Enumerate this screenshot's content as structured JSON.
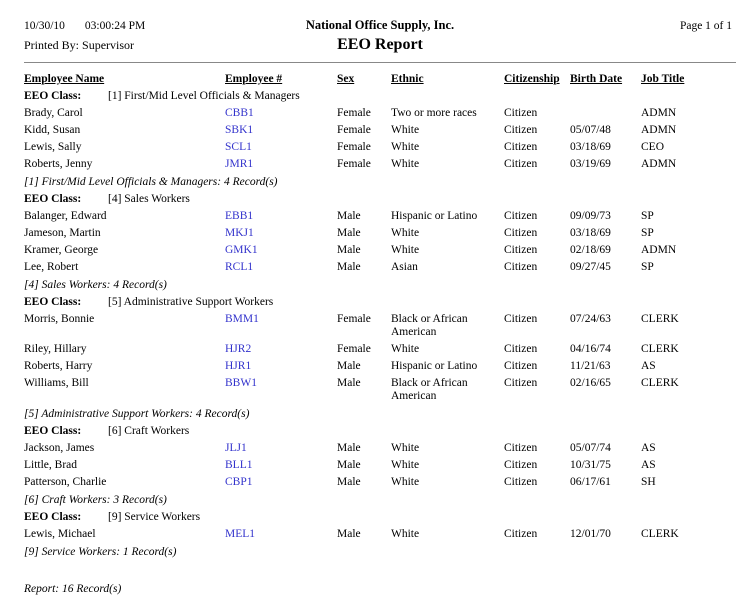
{
  "header": {
    "date": "10/30/10",
    "time": "03:00:24 PM",
    "printed_by_label": "Printed By:",
    "printed_by_value": "Supervisor",
    "company_name": "National Office Supply, Inc.",
    "report_title": "EEO Report",
    "page_info": "Page 1 of 1"
  },
  "table": {
    "columns": [
      {
        "key": "name",
        "label": "Employee Name"
      },
      {
        "key": "number",
        "label": "Employee #"
      },
      {
        "key": "sex",
        "label": "Sex"
      },
      {
        "key": "ethnic",
        "label": "Ethnic"
      },
      {
        "key": "citizenship",
        "label": "Citizenship"
      },
      {
        "key": "birth_date",
        "label": "Birth Date"
      },
      {
        "key": "job_title",
        "label": "Job Title"
      }
    ],
    "groups": [
      {
        "class_label": "EEO Class:",
        "class_name": "[1] First/Mid Level Officials & Managers",
        "rows": [
          {
            "name": "Brady, Carol",
            "number": "CBB1",
            "sex": "Female",
            "ethnic": "Two or more races",
            "citizenship": "Citizen",
            "birth_date": "",
            "job_title": "ADMN"
          },
          {
            "name": "Kidd, Susan",
            "number": "SBK1",
            "sex": "Female",
            "ethnic": "White",
            "citizenship": "Citizen",
            "birth_date": "05/07/48",
            "job_title": "ADMN"
          },
          {
            "name": "Lewis, Sally",
            "number": "SCL1",
            "sex": "Female",
            "ethnic": "White",
            "citizenship": "Citizen",
            "birth_date": "03/18/69",
            "job_title": "CEO"
          },
          {
            "name": "Roberts, Jenny",
            "number": "JMR1",
            "sex": "Female",
            "ethnic": "White",
            "citizenship": "Citizen",
            "birth_date": "03/19/69",
            "job_title": "ADMN"
          }
        ],
        "summary": "[1] First/Mid Level Officials & Managers: 4 Record(s)"
      },
      {
        "class_label": "EEO Class:",
        "class_name": "[4] Sales Workers",
        "rows": [
          {
            "name": "Balanger, Edward",
            "number": "EBB1",
            "sex": "Male",
            "ethnic": "Hispanic or Latino",
            "citizenship": "Citizen",
            "birth_date": "09/09/73",
            "job_title": "SP"
          },
          {
            "name": "Jameson, Martin",
            "number": "MKJ1",
            "sex": "Male",
            "ethnic": "White",
            "citizenship": "Citizen",
            "birth_date": "03/18/69",
            "job_title": "SP"
          },
          {
            "name": "Kramer, George",
            "number": "GMK1",
            "sex": "Male",
            "ethnic": "White",
            "citizenship": "Citizen",
            "birth_date": "02/18/69",
            "job_title": "ADMN"
          },
          {
            "name": "Lee, Robert",
            "number": "RCL1",
            "sex": "Male",
            "ethnic": "Asian",
            "citizenship": "Citizen",
            "birth_date": "09/27/45",
            "job_title": "SP"
          }
        ],
        "summary": "[4] Sales Workers: 4 Record(s)"
      },
      {
        "class_label": "EEO Class:",
        "class_name": "[5] Administrative Support Workers",
        "rows": [
          {
            "name": "Morris, Bonnie",
            "number": "BMM1",
            "sex": "Female",
            "ethnic": "Black or African American",
            "citizenship": "Citizen",
            "birth_date": "07/24/63",
            "job_title": "CLERK"
          },
          {
            "name": "Riley, Hillary",
            "number": "HJR2",
            "sex": "Female",
            "ethnic": "White",
            "citizenship": "Citizen",
            "birth_date": "04/16/74",
            "job_title": "CLERK"
          },
          {
            "name": "Roberts, Harry",
            "number": "HJR1",
            "sex": "Male",
            "ethnic": "Hispanic or Latino",
            "citizenship": "Citizen",
            "birth_date": "11/21/63",
            "job_title": "AS"
          },
          {
            "name": "Williams, Bill",
            "number": "BBW1",
            "sex": "Male",
            "ethnic": "Black or African American",
            "citizenship": "Citizen",
            "birth_date": "02/16/65",
            "job_title": "CLERK"
          }
        ],
        "summary": "[5] Administrative Support Workers: 4 Record(s)"
      },
      {
        "class_label": "EEO Class:",
        "class_name": "[6] Craft Workers",
        "rows": [
          {
            "name": "Jackson, James",
            "number": "JLJ1",
            "sex": "Male",
            "ethnic": "White",
            "citizenship": "Citizen",
            "birth_date": "05/07/74",
            "job_title": "AS"
          },
          {
            "name": "Little, Brad",
            "number": "BLL1",
            "sex": "Male",
            "ethnic": "White",
            "citizenship": "Citizen",
            "birth_date": "10/31/75",
            "job_title": "AS"
          },
          {
            "name": "Patterson, Charlie",
            "number": "CBP1",
            "sex": "Male",
            "ethnic": "White",
            "citizenship": "Citizen",
            "birth_date": "06/17/61",
            "job_title": "SH"
          }
        ],
        "summary": "[6] Craft Workers: 3 Record(s)"
      },
      {
        "class_label": "EEO Class:",
        "class_name": "[9] Service Workers",
        "rows": [
          {
            "name": "Lewis, Michael",
            "number": "MEL1",
            "sex": "Male",
            "ethnic": "White",
            "citizenship": "Citizen",
            "birth_date": "12/01/70",
            "job_title": "CLERK"
          }
        ],
        "summary": "[9] Service Workers: 1 Record(s)"
      }
    ],
    "report_summary": "Report: 16 Record(s)"
  },
  "colors": {
    "link_blue": "#3333cc",
    "text": "#000000",
    "background": "#ffffff"
  }
}
